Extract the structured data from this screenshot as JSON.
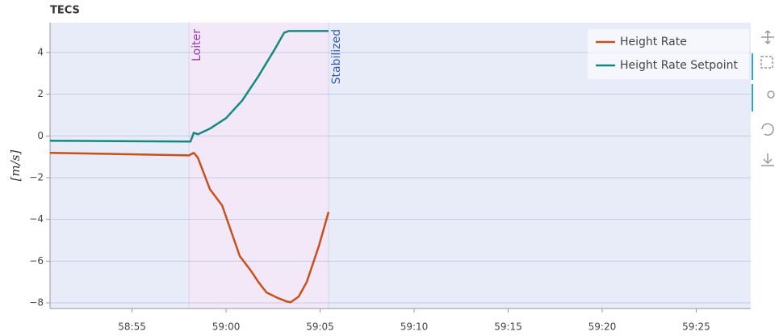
{
  "chart_data": {
    "type": "line",
    "title": "TECS",
    "ylabel": "[m/s]",
    "xlim": [
      50.64,
      87.9
    ],
    "ylim": [
      -8.27,
      5.43
    ],
    "xticks": [
      {
        "value": 55,
        "label": "58:55"
      },
      {
        "value": 60,
        "label": "59:00"
      },
      {
        "value": 65,
        "label": "59:05"
      },
      {
        "value": 70,
        "label": "59:10"
      },
      {
        "value": 75,
        "label": "59:15"
      },
      {
        "value": 80,
        "label": "59:20"
      },
      {
        "value": 85,
        "label": "59:25"
      }
    ],
    "yticks": [
      {
        "value": -8,
        "label": "−8"
      },
      {
        "value": -6,
        "label": "−6"
      },
      {
        "value": -4,
        "label": "−4"
      },
      {
        "value": -2,
        "label": "−2"
      },
      0,
      2,
      4
    ],
    "grid": true,
    "legend": "top-right",
    "annotations": [
      {
        "text": "Loiter",
        "x": 58.03,
        "color": "#9a37b0"
      },
      {
        "text": "Stabilized",
        "x": 65.45,
        "color": "#2f5fa8"
      }
    ],
    "series": [
      {
        "name": "Height Rate",
        "color": "#c8501a",
        "x": [
          50.64,
          58.03,
          58.28,
          58.5,
          59.14,
          59.79,
          60.73,
          61.29,
          61.72,
          62.15,
          62.79,
          63.22,
          63.43,
          63.86,
          64.29,
          64.94,
          65.45
        ],
        "values": [
          -0.81,
          -0.93,
          -0.81,
          -1.04,
          -2.55,
          -3.33,
          -5.76,
          -6.42,
          -7.0,
          -7.5,
          -7.78,
          -7.93,
          -7.97,
          -7.7,
          -7.0,
          -5.26,
          -3.64
        ]
      },
      {
        "name": "Height Rate Setpoint",
        "color": "#138a80",
        "x": [
          50.64,
          58.11,
          58.28,
          58.5,
          59.14,
          60,
          60.86,
          61.72,
          62.58,
          63.09,
          63.35,
          65.45
        ],
        "values": [
          -0.23,
          -0.27,
          0.15,
          0.08,
          0.35,
          0.85,
          1.7,
          2.86,
          4.14,
          4.95,
          5.03,
          5.03
        ]
      }
    ]
  }
}
